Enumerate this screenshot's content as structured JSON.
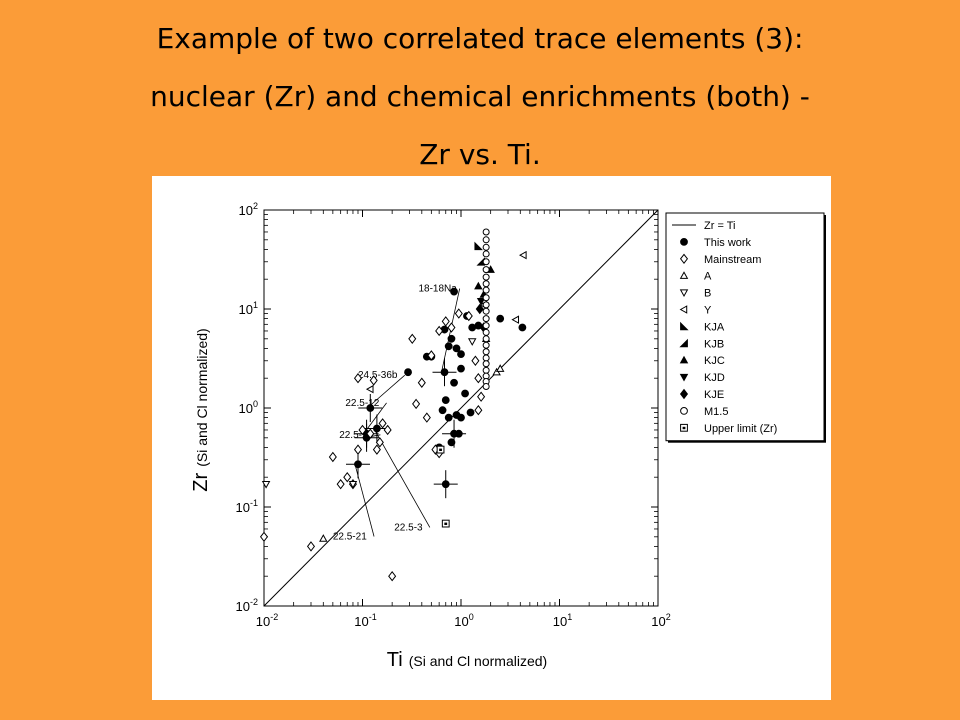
{
  "slide": {
    "title_line1": "Example of two correlated trace elements (3):",
    "title_line2": "nuclear (Zr) and chemical enrichments (both) -",
    "title_line3": "Zr vs. Ti."
  },
  "colors": {
    "background": "#fb9c38",
    "panel": "#ffffff",
    "ink": "#000000"
  },
  "chart_data": {
    "type": "scatter",
    "scale": "log-log",
    "xlim": [
      0.01,
      100
    ],
    "ylim": [
      0.01,
      100
    ],
    "x_ticks": [
      {
        "value": 0.01,
        "base": "10",
        "exp": "-2"
      },
      {
        "value": 0.1,
        "base": "10",
        "exp": "-1"
      },
      {
        "value": 1,
        "base": "10",
        "exp": "0"
      },
      {
        "value": 10,
        "base": "10",
        "exp": "1"
      },
      {
        "value": 100,
        "base": "10",
        "exp": "2"
      }
    ],
    "y_ticks": [
      {
        "value": 0.01,
        "base": "10",
        "exp": "-2"
      },
      {
        "value": 0.1,
        "base": "10",
        "exp": "-1"
      },
      {
        "value": 1,
        "base": "10",
        "exp": "0"
      },
      {
        "value": 10,
        "base": "10",
        "exp": "1"
      },
      {
        "value": 100,
        "base": "10",
        "exp": "2"
      }
    ],
    "xlabel_main": "Ti",
    "xlabel_sub": "(Si and Cl normalized)",
    "ylabel_main": "Zr",
    "ylabel_sub": "(Si and Cl normalized)",
    "legend_position": "right",
    "legend": [
      {
        "label": "Zr = Ti",
        "symbol": "line"
      },
      {
        "label": "This work",
        "symbol": "filled-circle"
      },
      {
        "label": "Mainstream",
        "symbol": "open-diamond"
      },
      {
        "label": "A",
        "symbol": "open-triangle-up"
      },
      {
        "label": "B",
        "symbol": "open-triangle-down"
      },
      {
        "label": "Y",
        "symbol": "open-triangle-left"
      },
      {
        "label": "KJA",
        "symbol": "filled-corner-left"
      },
      {
        "label": "KJB",
        "symbol": "filled-corner-right"
      },
      {
        "label": "KJC",
        "symbol": "filled-triangle-up"
      },
      {
        "label": "KJD",
        "symbol": "filled-triangle-down"
      },
      {
        "label": "KJE",
        "symbol": "filled-diamond"
      },
      {
        "label": "M1.5",
        "symbol": "open-circle"
      },
      {
        "label": "Upper limit (Zr)",
        "symbol": "upper-limit"
      }
    ],
    "reference_line": {
      "label": "Zr = Ti",
      "from": [
        0.01,
        0.01
      ],
      "to": [
        100,
        100
      ]
    },
    "annotations": [
      {
        "text": "18-18Na",
        "x": 0.37,
        "y": 15,
        "point": [
          0.68,
          2.3
        ]
      },
      {
        "text": "24.5-36b",
        "x": 0.09,
        "y": 2.0,
        "point": [
          0.12,
          1.0
        ]
      },
      {
        "text": "22.5-12",
        "x": 0.067,
        "y": 1.05,
        "point": [
          0.11,
          0.55
        ]
      },
      {
        "text": "22.5-10",
        "x": 0.058,
        "y": 0.5,
        "point": [
          0.11,
          0.5
        ]
      },
      {
        "text": "22.5-21",
        "x": 0.05,
        "y": 0.047,
        "point": [
          0.09,
          0.27
        ]
      },
      {
        "text": "22.5-3",
        "x": 0.21,
        "y": 0.058,
        "point": [
          0.14,
          0.62
        ]
      }
    ],
    "series": [
      {
        "name": "This work",
        "symbol": "filled-circle",
        "points": [
          [
            0.09,
            0.27
          ],
          [
            0.11,
            0.55
          ],
          [
            0.12,
            1.0
          ],
          [
            0.11,
            0.5
          ],
          [
            0.14,
            0.62
          ],
          [
            0.29,
            2.3
          ],
          [
            0.5,
            3.3
          ],
          [
            0.45,
            3.3
          ],
          [
            0.68,
            2.3
          ],
          [
            0.75,
            4.2
          ],
          [
            0.68,
            6.2
          ],
          [
            0.8,
            5.0
          ],
          [
            0.85,
            15.0
          ],
          [
            1.0,
            3.5
          ],
          [
            1.15,
            8.5
          ],
          [
            1.3,
            6.5
          ],
          [
            1.5,
            6.8
          ],
          [
            1.0,
            2.5
          ],
          [
            1.1,
            1.4
          ],
          [
            0.7,
            1.2
          ],
          [
            0.65,
            0.95
          ],
          [
            0.75,
            0.8
          ],
          [
            0.9,
            0.85
          ],
          [
            0.95,
            0.55
          ],
          [
            0.8,
            0.45
          ],
          [
            0.85,
            0.55
          ],
          [
            0.7,
            0.17
          ],
          [
            1.0,
            0.8
          ],
          [
            1.25,
            0.9
          ],
          [
            0.85,
            1.8
          ],
          [
            0.9,
            4.0
          ],
          [
            2.5,
            8.0
          ],
          [
            4.2,
            6.5
          ],
          [
            0.6,
            0.4
          ]
        ]
      },
      {
        "name": "Mainstream",
        "symbol": "open-diamond",
        "points": [
          [
            0.01,
            0.05
          ],
          [
            0.06,
            0.17
          ],
          [
            0.07,
            0.2
          ],
          [
            0.08,
            0.17
          ],
          [
            0.09,
            0.38
          ],
          [
            0.1,
            0.6
          ],
          [
            0.09,
            2.0
          ],
          [
            0.13,
            1.9
          ],
          [
            0.14,
            0.38
          ],
          [
            0.15,
            0.45
          ],
          [
            0.12,
            0.55
          ],
          [
            0.16,
            0.7
          ],
          [
            0.18,
            0.6
          ],
          [
            0.2,
            0.02
          ],
          [
            0.05,
            0.32
          ],
          [
            0.03,
            0.04
          ],
          [
            0.35,
            1.1
          ],
          [
            0.45,
            0.8
          ],
          [
            0.55,
            0.38
          ],
          [
            0.6,
            0.35
          ],
          [
            0.32,
            5.0
          ],
          [
            0.5,
            3.4
          ],
          [
            0.6,
            6.0
          ],
          [
            0.7,
            7.5
          ],
          [
            0.8,
            6.5
          ],
          [
            0.95,
            9.0
          ],
          [
            1.2,
            8.5
          ],
          [
            1.4,
            3.0
          ],
          [
            1.5,
            2.0
          ],
          [
            1.6,
            1.3
          ],
          [
            1.5,
            0.95
          ],
          [
            0.4,
            1.8
          ]
        ]
      },
      {
        "name": "A",
        "symbol": "open-triangle-up",
        "points": [
          [
            0.04,
            0.048
          ],
          [
            2.3,
            2.3
          ],
          [
            2.5,
            2.5
          ],
          [
            1.8,
            5.0
          ]
        ]
      },
      {
        "name": "B",
        "symbol": "open-triangle-down",
        "points": [
          [
            0.0105,
            0.17
          ],
          [
            1.3,
            4.7
          ],
          [
            0.08,
            0.17
          ]
        ]
      },
      {
        "name": "Y",
        "symbol": "open-triangle-left",
        "points": [
          [
            0.12,
            1.55
          ],
          [
            3.6,
            7.8
          ],
          [
            4.3,
            35.0
          ],
          [
            1.7,
            11.0
          ]
        ]
      },
      {
        "name": "KJA",
        "symbol": "filled-corner-left",
        "points": [
          [
            1.5,
            43.0
          ]
        ]
      },
      {
        "name": "KJB",
        "symbol": "filled-corner-right",
        "points": [
          [
            1.6,
            30.0
          ]
        ]
      },
      {
        "name": "KJC",
        "symbol": "filled-triangle-up",
        "points": [
          [
            1.5,
            17.0
          ],
          [
            1.7,
            14.0
          ],
          [
            2.0,
            25.0
          ]
        ]
      },
      {
        "name": "KJD",
        "symbol": "filled-triangle-down",
        "points": [
          [
            1.6,
            12.0
          ]
        ]
      },
      {
        "name": "KJE",
        "symbol": "filled-diamond",
        "points": [
          [
            1.55,
            10.0
          ],
          [
            1.7,
            6.5
          ]
        ]
      },
      {
        "name": "M1.5",
        "symbol": "open-circle",
        "points": [
          [
            1.8,
            60.0
          ],
          [
            1.8,
            50.0
          ],
          [
            1.8,
            42.0
          ],
          [
            1.8,
            36.0
          ],
          [
            1.8,
            30.0
          ],
          [
            1.8,
            25.0
          ],
          [
            1.8,
            21.0
          ],
          [
            1.8,
            18.0
          ],
          [
            1.8,
            15.5
          ],
          [
            1.8,
            13.0
          ],
          [
            1.8,
            11.0
          ],
          [
            1.8,
            9.5
          ],
          [
            1.8,
            8.0
          ],
          [
            1.8,
            6.8
          ],
          [
            1.8,
            5.8
          ],
          [
            1.8,
            5.0
          ],
          [
            1.8,
            4.3
          ],
          [
            1.8,
            3.7
          ],
          [
            1.8,
            3.2
          ],
          [
            1.8,
            2.8
          ],
          [
            1.8,
            2.4
          ],
          [
            1.8,
            2.1
          ],
          [
            1.8,
            1.85
          ],
          [
            1.8,
            1.65
          ]
        ]
      },
      {
        "name": "Upper limit (Zr)",
        "symbol": "upper-limit",
        "points": [
          [
            0.7,
            0.068
          ],
          [
            0.62,
            0.38
          ]
        ]
      }
    ]
  }
}
